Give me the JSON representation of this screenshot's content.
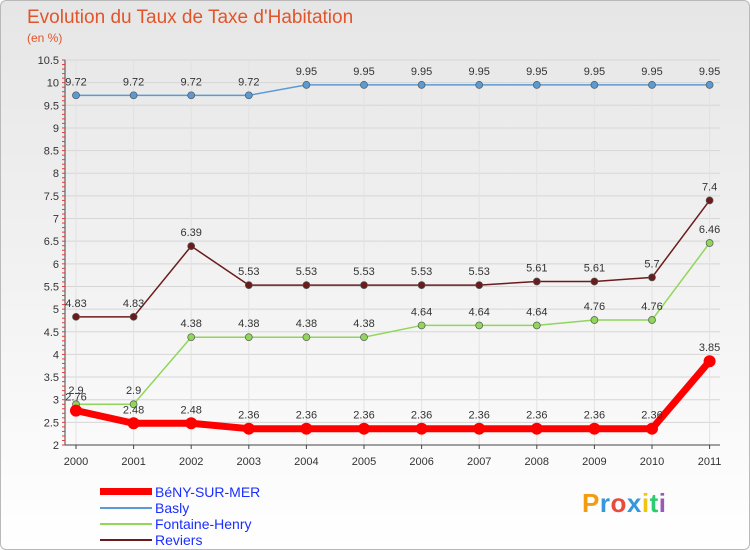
{
  "chart_data": {
    "type": "line",
    "title": "Evolution du Taux de Taxe d'Habitation",
    "subtitle": "(en %)",
    "ylim": [
      2,
      10.5
    ],
    "ytick_labels": [
      "2",
      "2.5",
      "3",
      "3.5",
      "4",
      "4.5",
      "5",
      "5.5",
      "6",
      "6.5",
      "7",
      "7.5",
      "8",
      "8.5",
      "9",
      "9.5",
      "10",
      "10.5"
    ],
    "categories": [
      "2000",
      "2001",
      "2002",
      "2003",
      "2004",
      "2005",
      "2006",
      "2007",
      "2008",
      "2009",
      "2010",
      "2011"
    ],
    "grid": true,
    "series": [
      {
        "name": "BéNY-SUR-MER",
        "color": "#ff0000",
        "values": [
          2.76,
          2.48,
          2.48,
          2.36,
          2.36,
          2.36,
          2.36,
          2.36,
          2.36,
          2.36,
          2.36,
          3.85
        ],
        "labels": [
          "2.76",
          "2.48",
          "2.48",
          "2.36",
          "2.36",
          "2.36",
          "2.36",
          "2.36",
          "2.36",
          "2.36",
          "2.36",
          "3.85"
        ]
      },
      {
        "name": "Basly",
        "color": "#5b9bd5",
        "values": [
          9.72,
          9.72,
          9.72,
          9.72,
          9.95,
          9.95,
          9.95,
          9.95,
          9.95,
          9.95,
          9.95,
          9.95
        ],
        "labels": [
          "9.72",
          "9.72",
          "9.72",
          "9.72",
          "9.95",
          "9.95",
          "9.95",
          "9.95",
          "9.95",
          "9.95",
          "9.95",
          "9.95"
        ]
      },
      {
        "name": "Fontaine-Henry",
        "color": "#8fd65a",
        "values": [
          2.9,
          2.9,
          4.38,
          4.38,
          4.38,
          4.38,
          4.64,
          4.64,
          4.64,
          4.76,
          4.76,
          6.46
        ],
        "labels": [
          "2.9",
          "2.9",
          "4.38",
          "4.38",
          "4.38",
          "4.38",
          "4.64",
          "4.64",
          "4.64",
          "4.76",
          "4.76",
          "6.46"
        ]
      },
      {
        "name": "Reviers",
        "color": "#6b1b1b",
        "values": [
          4.83,
          4.83,
          6.39,
          5.53,
          5.53,
          5.53,
          5.53,
          5.53,
          5.61,
          5.61,
          5.7,
          7.4
        ],
        "labels": [
          "4.83",
          "4.83",
          "6.39",
          "5.53",
          "5.53",
          "5.53",
          "5.53",
          "5.53",
          "5.61",
          "5.61",
          "5.7",
          "7.4"
        ]
      }
    ]
  },
  "logo": {
    "text": "Proxiti",
    "colors": [
      "#f39c12",
      "#3498db",
      "#e74c3c",
      "#3498db",
      "#f1c40f",
      "#2ecc71",
      "#9b59b6"
    ]
  }
}
